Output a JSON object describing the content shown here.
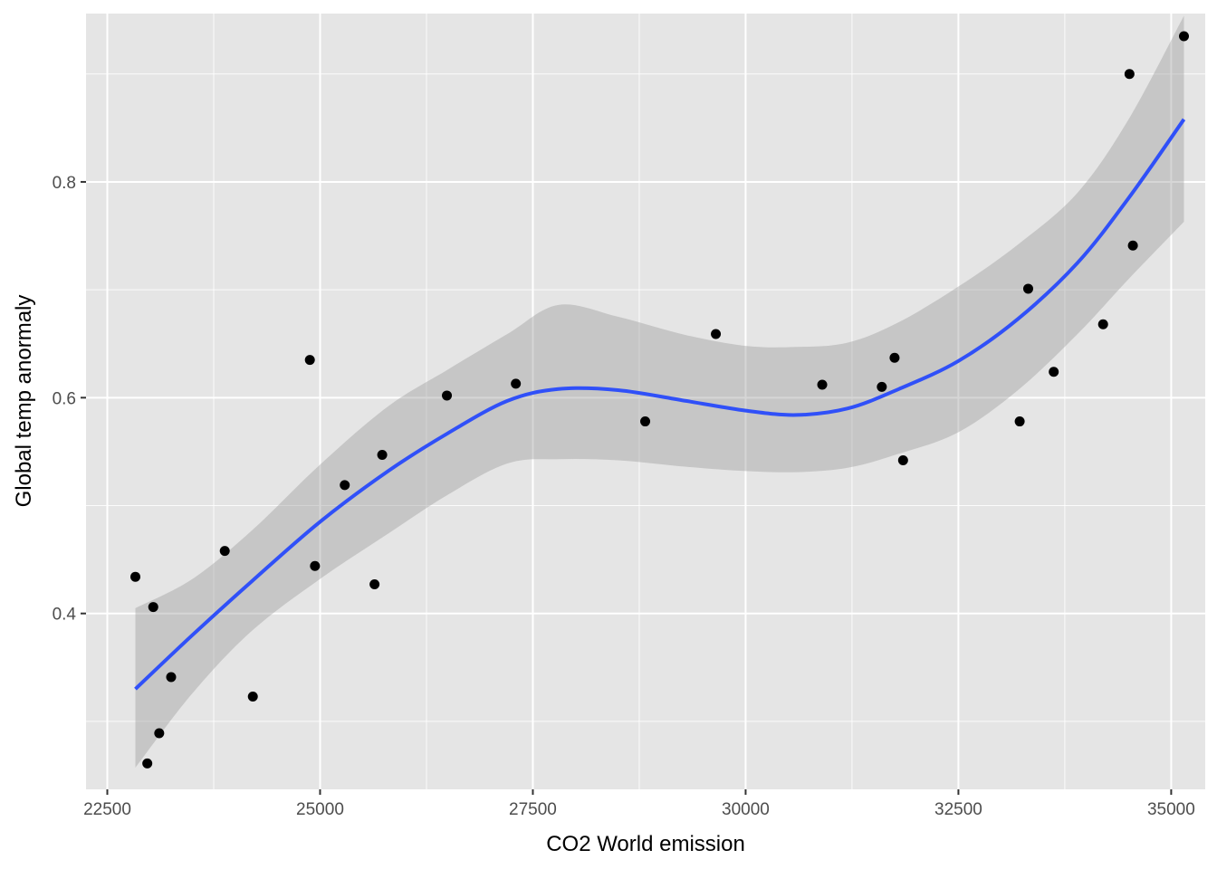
{
  "chart_data": {
    "type": "scatter",
    "xlabel": "CO2 World emission",
    "ylabel": "Global temp anormaly",
    "xlim": [
      22250,
      35400
    ],
    "ylim": [
      0.237,
      0.956
    ],
    "x_ticks": [
      22500,
      25000,
      27500,
      30000,
      32500,
      35000
    ],
    "x_tick_labels": [
      "22500",
      "25000",
      "27500",
      "30000",
      "32500",
      "35000"
    ],
    "y_ticks": [
      0.4,
      0.6,
      0.8
    ],
    "y_tick_labels": [
      "0.4",
      "0.6",
      "0.8"
    ],
    "grid": true,
    "legend": "none",
    "colors": {
      "panel": "#e5e5e5",
      "grid": "#ffffff",
      "points": "#000000",
      "fit_line": "#3050f8",
      "ribbon": "#999999"
    },
    "points": [
      {
        "x": 22830,
        "y": 0.434
      },
      {
        "x": 22970,
        "y": 0.261
      },
      {
        "x": 23040,
        "y": 0.406
      },
      {
        "x": 23110,
        "y": 0.289
      },
      {
        "x": 23250,
        "y": 0.341
      },
      {
        "x": 23880,
        "y": 0.458
      },
      {
        "x": 24210,
        "y": 0.323
      },
      {
        "x": 24880,
        "y": 0.635
      },
      {
        "x": 24940,
        "y": 0.444
      },
      {
        "x": 25290,
        "y": 0.519
      },
      {
        "x": 25640,
        "y": 0.427
      },
      {
        "x": 25730,
        "y": 0.547
      },
      {
        "x": 26490,
        "y": 0.602
      },
      {
        "x": 27300,
        "y": 0.613
      },
      {
        "x": 28820,
        "y": 0.578
      },
      {
        "x": 29650,
        "y": 0.659
      },
      {
        "x": 30900,
        "y": 0.612
      },
      {
        "x": 31600,
        "y": 0.61
      },
      {
        "x": 31750,
        "y": 0.637
      },
      {
        "x": 31850,
        "y": 0.542
      },
      {
        "x": 33220,
        "y": 0.578
      },
      {
        "x": 33320,
        "y": 0.701
      },
      {
        "x": 33620,
        "y": 0.624
      },
      {
        "x": 34200,
        "y": 0.668
      },
      {
        "x": 34510,
        "y": 0.9
      },
      {
        "x": 34550,
        "y": 0.741
      },
      {
        "x": 35150,
        "y": 0.935
      }
    ],
    "smooth": {
      "x": [
        22830,
        23500,
        24200,
        25000,
        25800,
        26500,
        27200,
        27800,
        28500,
        29300,
        30000,
        30600,
        31200,
        31800,
        32500,
        33200,
        33900,
        34500,
        35150
      ],
      "y": [
        0.33,
        0.38,
        0.43,
        0.485,
        0.532,
        0.567,
        0.597,
        0.608,
        0.607,
        0.597,
        0.588,
        0.584,
        0.59,
        0.608,
        0.634,
        0.673,
        0.725,
        0.785,
        0.858
      ],
      "lower": [
        0.257,
        0.326,
        0.384,
        0.432,
        0.474,
        0.51,
        0.539,
        0.543,
        0.542,
        0.536,
        0.532,
        0.531,
        0.535,
        0.548,
        0.568,
        0.607,
        0.659,
        0.71,
        0.763
      ],
      "upper": [
        0.405,
        0.432,
        0.477,
        0.538,
        0.592,
        0.626,
        0.659,
        0.686,
        0.675,
        0.658,
        0.648,
        0.647,
        0.651,
        0.67,
        0.703,
        0.742,
        0.79,
        0.858,
        0.954
      ]
    }
  }
}
